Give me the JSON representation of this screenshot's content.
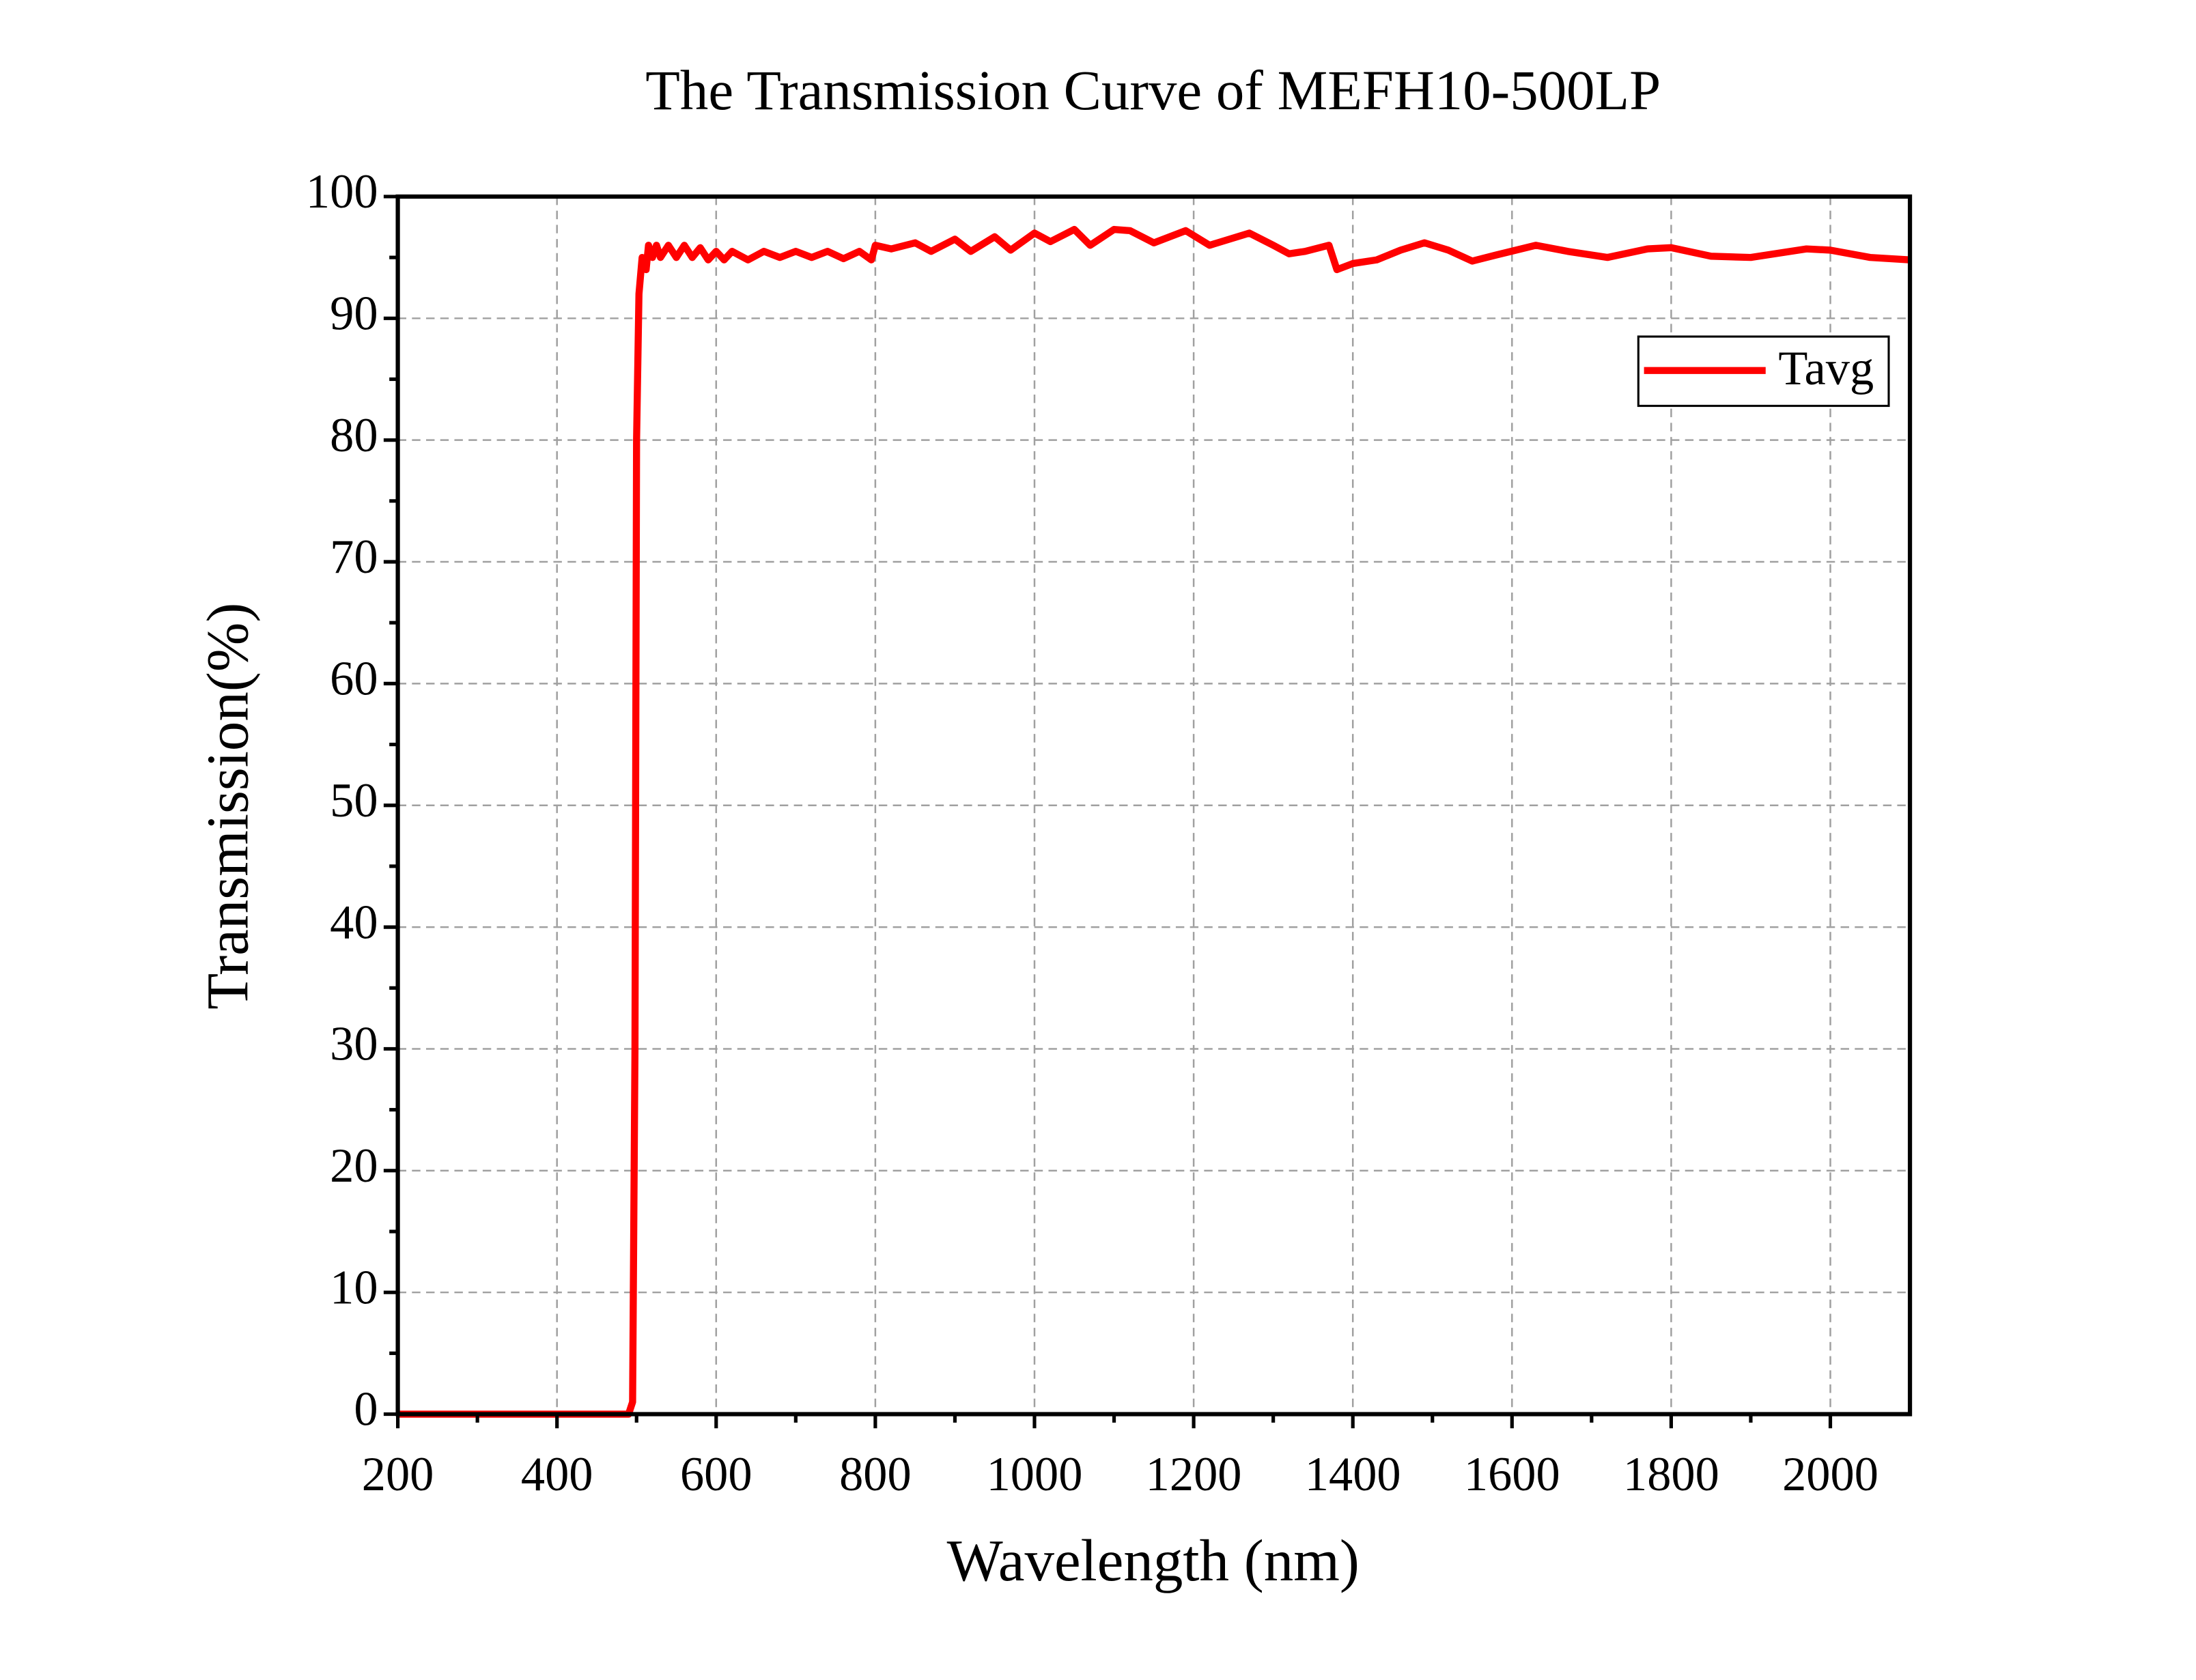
{
  "chart_data": {
    "type": "line",
    "title": "The Transmission Curve of MEFH10-500LP",
    "x_label": "Wavelength (nm)",
    "y_label": "Transmission(%)",
    "x": [
      200,
      490,
      495,
      498,
      500,
      503,
      507,
      512,
      515,
      520,
      525,
      530,
      540,
      550,
      560,
      570,
      580,
      590,
      600,
      610,
      620,
      640,
      660,
      680,
      700,
      720,
      740,
      760,
      780,
      795,
      800,
      820,
      850,
      870,
      900,
      920,
      950,
      970,
      1000,
      1020,
      1050,
      1070,
      1100,
      1120,
      1150,
      1190,
      1220,
      1270,
      1300,
      1320,
      1340,
      1370,
      1380,
      1400,
      1430,
      1460,
      1490,
      1520,
      1550,
      1580,
      1630,
      1670,
      1720,
      1770,
      1800,
      1850,
      1900,
      1970,
      2000,
      2050,
      2100
    ],
    "series": [
      {
        "name": "Tavg",
        "color": "#ff0000",
        "values": [
          0,
          0,
          1,
          30,
          80,
          92,
          95,
          94,
          96,
          95,
          96,
          95,
          96,
          95,
          96,
          95,
          95.8,
          94.8,
          95.5,
          94.8,
          95.5,
          94.8,
          95.5,
          95,
          95.5,
          95,
          95.5,
          94.9,
          95.5,
          94.8,
          96,
          95.7,
          96.2,
          95.5,
          96.5,
          95.5,
          96.7,
          95.6,
          97,
          96.3,
          97.3,
          96,
          97.3,
          97.2,
          96.2,
          97.2,
          96,
          97,
          96,
          95.3,
          95.5,
          96,
          94,
          94.5,
          94.8,
          95.6,
          96.2,
          95.6,
          94.7,
          95.2,
          96,
          95.5,
          95,
          95.7,
          95.8,
          95.1,
          95,
          95.7,
          95.6,
          95,
          94.8
        ]
      }
    ],
    "xlim": [
      200,
      2100
    ],
    "ylim": [
      0,
      100
    ],
    "xticks": [
      200,
      400,
      600,
      800,
      1000,
      1200,
      1400,
      1600,
      1800,
      2000
    ],
    "yticks": [
      0,
      10,
      20,
      30,
      40,
      50,
      60,
      70,
      80,
      90,
      100
    ],
    "grid": true,
    "legend": "upper right"
  }
}
